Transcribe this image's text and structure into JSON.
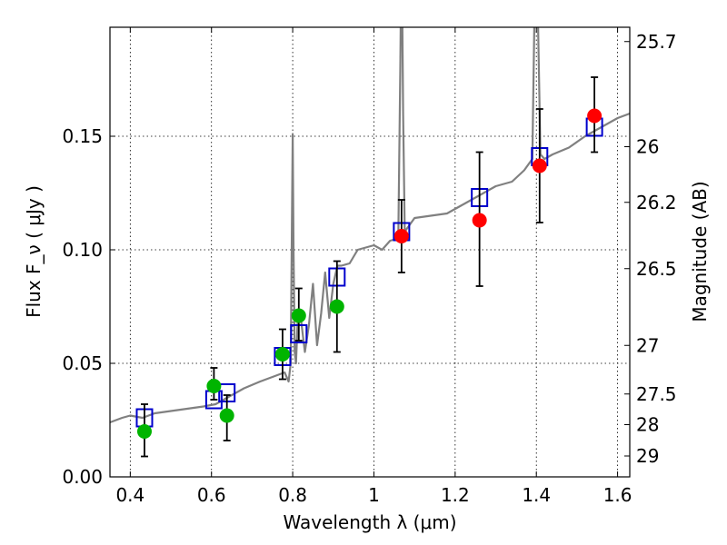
{
  "chart_data": {
    "type": "scatter",
    "xlabel": "Wavelength  λ (μm)",
    "ylabel": "Flux  F_ν  ( μJy )",
    "y2label": "Magnitude (AB)",
    "xlim": [
      0.35,
      1.63
    ],
    "ylim": [
      0.0,
      0.198
    ],
    "grid": true,
    "x_ticks": [
      0.4,
      0.6,
      0.8,
      1.0,
      1.2,
      1.4,
      1.6
    ],
    "x_tick_labels": [
      "0.4",
      "0.6",
      "0.8",
      "1",
      "1.2",
      "1.4",
      "1.6"
    ],
    "y_ticks": [
      0.0,
      0.05,
      0.1,
      0.15
    ],
    "y_tick_labels": [
      "0.00",
      "0.05",
      "0.10",
      "0.15"
    ],
    "y2_ticks": [
      {
        "label": "25.7",
        "flux": 0.1917
      },
      {
        "label": "26",
        "flux": 0.1454
      },
      {
        "label": "26.2",
        "flux": 0.1209
      },
      {
        "label": "26.5",
        "flux": 0.0917
      },
      {
        "label": "27",
        "flux": 0.0579
      },
      {
        "label": "27.5",
        "flux": 0.0365
      },
      {
        "label": "28",
        "flux": 0.023
      },
      {
        "label": "29",
        "flux": 0.0092
      }
    ],
    "colors": {
      "spectrum": "#808080",
      "model_box": "#0000cc",
      "green_points": "#00b400",
      "red_points": "#ff0000",
      "errorbar": "#000000"
    },
    "series": [
      {
        "kind": "model_photometry",
        "marker": "open-square",
        "x": [
          0.435,
          0.606,
          0.638,
          0.775,
          0.815,
          0.909,
          1.068,
          1.26,
          1.408,
          1.543
        ],
        "y": [
          0.026,
          0.034,
          0.037,
          0.053,
          0.063,
          0.088,
          0.108,
          0.123,
          0.141,
          0.154
        ]
      },
      {
        "kind": "observed_optical",
        "marker": "filled-circle",
        "x": [
          0.435,
          0.606,
          0.638,
          0.775,
          0.815,
          0.909
        ],
        "y": [
          0.02,
          0.04,
          0.027,
          0.054,
          0.071,
          0.075
        ],
        "yerr_lo": [
          0.011,
          0.006,
          0.011,
          0.011,
          0.011,
          0.02
        ],
        "yerr_hi": [
          0.012,
          0.008,
          0.009,
          0.011,
          0.012,
          0.02
        ]
      },
      {
        "kind": "observed_nir",
        "marker": "filled-circle",
        "x": [
          1.068,
          1.26,
          1.408,
          1.543
        ],
        "y": [
          0.106,
          0.113,
          0.137,
          0.159
        ],
        "yerr_lo": [
          0.016,
          0.029,
          0.025,
          0.016
        ],
        "yerr_hi": [
          0.016,
          0.03,
          0.025,
          0.017
        ]
      }
    ],
    "spectrum": {
      "x": [
        0.35,
        0.38,
        0.4,
        0.43,
        0.46,
        0.5,
        0.54,
        0.58,
        0.61,
        0.64,
        0.68,
        0.72,
        0.75,
        0.78,
        0.79,
        0.795,
        0.8,
        0.802,
        0.805,
        0.808,
        0.812,
        0.82,
        0.83,
        0.84,
        0.85,
        0.86,
        0.87,
        0.88,
        0.89,
        0.9,
        0.91,
        0.92,
        0.94,
        0.96,
        0.98,
        1.0,
        1.02,
        1.04,
        1.06,
        1.065,
        1.068,
        1.072,
        1.076,
        1.08,
        1.1,
        1.14,
        1.18,
        1.22,
        1.26,
        1.3,
        1.34,
        1.37,
        1.39,
        1.395,
        1.4,
        1.405,
        1.41,
        1.42,
        1.44,
        1.48,
        1.52,
        1.56,
        1.6,
        1.63
      ],
      "y": [
        0.024,
        0.026,
        0.027,
        0.026,
        0.028,
        0.029,
        0.03,
        0.031,
        0.032,
        0.035,
        0.039,
        0.042,
        0.044,
        0.046,
        0.042,
        0.05,
        0.151,
        0.1,
        0.055,
        0.05,
        0.068,
        0.07,
        0.055,
        0.067,
        0.085,
        0.058,
        0.072,
        0.09,
        0.07,
        0.085,
        0.093,
        0.093,
        0.094,
        0.1,
        0.101,
        0.102,
        0.1,
        0.104,
        0.105,
        0.18,
        0.24,
        0.16,
        0.108,
        0.109,
        0.114,
        0.115,
        0.116,
        0.12,
        0.124,
        0.128,
        0.13,
        0.135,
        0.14,
        0.2,
        0.24,
        0.19,
        0.142,
        0.14,
        0.142,
        0.145,
        0.15,
        0.154,
        0.158,
        0.16
      ]
    }
  }
}
